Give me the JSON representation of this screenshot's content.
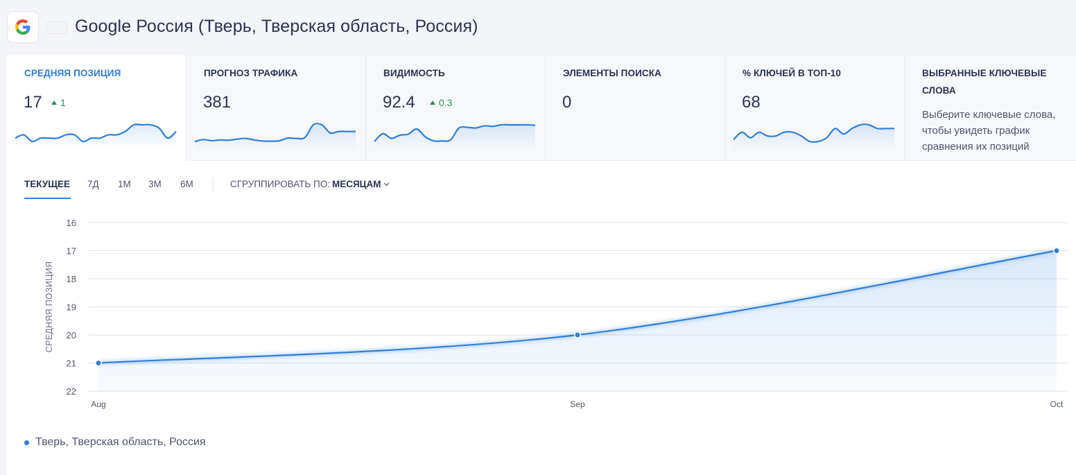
{
  "header": {
    "engine_icon": "google-g-icon",
    "flag_icon": "russia-flag-icon",
    "flag_colors": [
      "#ffffff",
      "#1f4fc5",
      "#e03131"
    ],
    "title": "Google Россия (Тверь, Тверская область, Россия)"
  },
  "metrics": [
    {
      "label": "СРЕДНЯЯ ПОЗИЦИЯ",
      "value": "17",
      "delta": "1",
      "delta_direction": "up",
      "active": true,
      "sparkline": [
        19.2,
        19.1,
        19.3,
        19.2,
        19.2,
        19.2,
        19.1,
        19.1,
        19.3,
        19.2,
        19.2,
        19.1,
        19.1,
        19.0,
        18.8,
        18.8,
        18.8,
        18.9,
        19.2,
        19.0
      ]
    },
    {
      "label": "ПРОГНОЗ ТРАФИКА",
      "value": "381",
      "sparkline": [
        340,
        352,
        345,
        350,
        348,
        355,
        360,
        350,
        343,
        342,
        345,
        362,
        360,
        365,
        448,
        448,
        395,
        405,
        405,
        405
      ]
    },
    {
      "label": "ВИДИМОСТЬ",
      "value": "92.4",
      "delta": "0.3",
      "delta_direction": "up",
      "sparkline": [
        88.6,
        90.1,
        89.2,
        89.8,
        90.0,
        91.0,
        89.5,
        88.7,
        88.7,
        88.9,
        91.2,
        91.3,
        91.2,
        91.6,
        91.5,
        91.8,
        91.8,
        91.8,
        91.8,
        91.7
      ]
    },
    {
      "label": "ЭЛЕМЕНТЫ ПОИСКА",
      "value": "0"
    },
    {
      "label": "% КЛЮЧЕЙ В ТОП-10",
      "value": "68",
      "sparkline": [
        66.8,
        67.2,
        66.9,
        67.2,
        67.0,
        67.0,
        67.2,
        67.2,
        67.0,
        66.7,
        66.7,
        66.9,
        67.4,
        67.1,
        67.4,
        67.6,
        67.6,
        67.4,
        67.4,
        67.4
      ]
    },
    {
      "label": "ВЫБРАННЫЕ КЛЮЧЕВЫЕ СЛОВА",
      "note": "Выберите ключевые слова, чтобы увидеть график сравнения их позиций"
    }
  ],
  "period_tabs": [
    {
      "label": "ТЕКУЩЕЕ",
      "active": true
    },
    {
      "label": "7Д"
    },
    {
      "label": "1М"
    },
    {
      "label": "3М"
    },
    {
      "label": "6М"
    }
  ],
  "group_by": {
    "label": "СГРУППИРОВАТЬ ПО:",
    "value": "МЕСЯЦАМ"
  },
  "chart_data": {
    "type": "area",
    "x": [
      "Aug",
      "Sep",
      "Oct"
    ],
    "series": [
      {
        "name": "Тверь, Тверская область, Россия",
        "values": [
          21,
          20,
          17
        ],
        "color": "#2f7fd8"
      }
    ],
    "ylabel": "СРЕДНЯЯ ПОЗИЦИЯ",
    "xlabel": "",
    "ylim": [
      16,
      22
    ],
    "y_reversed": true,
    "yticks": [
      16,
      17,
      18,
      19,
      20,
      21,
      22
    ],
    "grid": true
  },
  "legend": {
    "label": "Тверь, Тверская область, Россия"
  }
}
